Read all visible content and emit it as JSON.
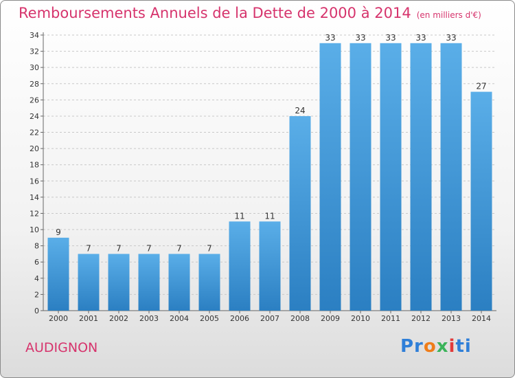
{
  "title": "Remboursements Annuels de la Dette de 2000 à 2014",
  "unit_note": "(en milliers d'€)",
  "commune": "AUDIGNON",
  "logo": {
    "p1": "Pr",
    "p2": "o",
    "p3": "x",
    "p4": "i",
    "p5": "ti"
  },
  "colors": {
    "bar_top": "#5aaee8",
    "bar_bottom": "#2b7fc2",
    "title": "#d6336c"
  },
  "chart_data": {
    "type": "bar",
    "title": "Remboursements Annuels de la Dette de 2000 à 2014",
    "xlabel": "",
    "ylabel": "",
    "ylim": [
      0,
      34
    ],
    "yticks": [
      0,
      2,
      4,
      6,
      8,
      10,
      12,
      14,
      16,
      18,
      20,
      22,
      24,
      26,
      28,
      30,
      32,
      34
    ],
    "categories": [
      "2000",
      "2001",
      "2002",
      "2003",
      "2004",
      "2005",
      "2006",
      "2007",
      "2008",
      "2009",
      "2010",
      "2011",
      "2012",
      "2013",
      "2014"
    ],
    "values": [
      9,
      7,
      7,
      7,
      7,
      7,
      11,
      11,
      24,
      33,
      33,
      33,
      33,
      33,
      27
    ],
    "grid": true
  }
}
